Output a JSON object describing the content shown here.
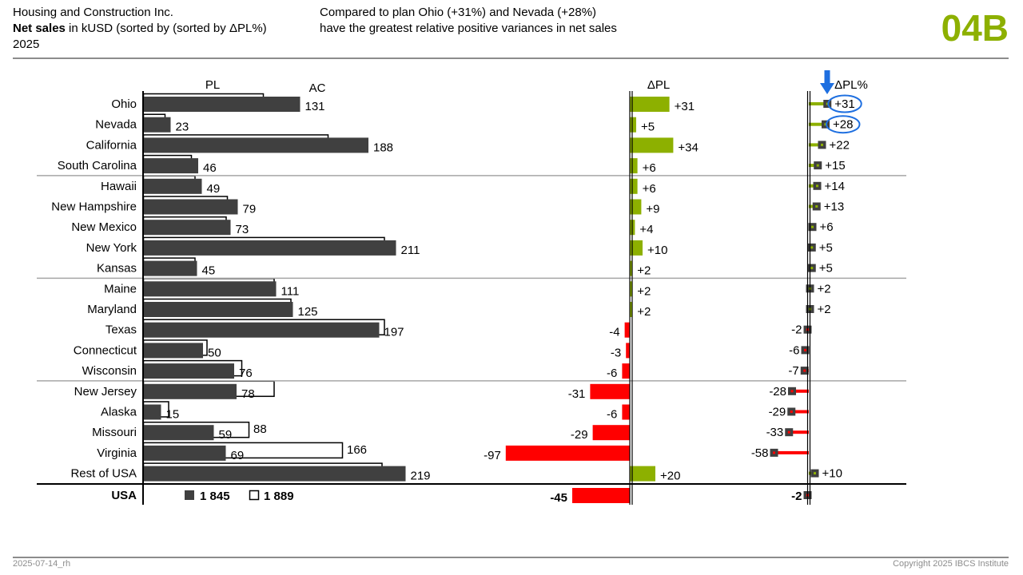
{
  "header": {
    "company": "Housing and Construction Inc.",
    "measure_bold": "Net sales",
    "measure_rest": " in kUSD (sorted by (sorted by ΔPL%)",
    "year": "2025",
    "message_line1": "Compared to plan Ohio (+31%) and Nevada (+28%)",
    "message_line2": "have the greatest relative positive variances in net sales",
    "page_code": "04B"
  },
  "footer": {
    "date_note": "2025-07-14_rh",
    "copyright": "Copyright 2025 IBCS Institute"
  },
  "colors": {
    "actual": "#404040",
    "plan_outline": "#000000",
    "positive": "#8db000",
    "negative": "#ff0000",
    "highlight": "#1e6fe0",
    "brand": "#8db000"
  },
  "icons": {
    "arrow": "down-arrow-icon"
  },
  "chart_data": {
    "type": "bar",
    "column_headers": {
      "pl": "PL",
      "ac": "AC",
      "dpl": "ΔPL",
      "dplp": "ΔPL%"
    },
    "categories": [
      "Ohio",
      "Nevada",
      "California",
      "South Carolina",
      "Hawaii",
      "New Hampshire",
      "New Mexico",
      "New York",
      "Kansas",
      "Maine",
      "Maryland",
      "Texas",
      "Connecticut",
      "Wisconsin",
      "New Jersey",
      "Alaska",
      "Missouri",
      "Virginia",
      "Rest of USA"
    ],
    "ac": [
      131,
      23,
      188,
      46,
      49,
      79,
      73,
      211,
      45,
      111,
      125,
      197,
      50,
      76,
      78,
      15,
      59,
      69,
      219
    ],
    "pl": [
      100,
      18,
      154,
      40,
      43,
      70,
      69,
      201,
      43,
      109,
      123,
      201,
      53,
      82,
      109,
      21,
      88,
      166,
      199
    ],
    "pl_labels": [
      null,
      null,
      null,
      null,
      null,
      null,
      null,
      null,
      null,
      null,
      null,
      null,
      null,
      null,
      null,
      null,
      "88",
      "166",
      null
    ],
    "delta_pl": [
      31,
      5,
      34,
      6,
      6,
      9,
      4,
      10,
      2,
      2,
      2,
      -4,
      -3,
      -6,
      -31,
      -6,
      -29,
      -97,
      20
    ],
    "delta_pl_labels": [
      "+31",
      "+5",
      "+34",
      "+6",
      "+6",
      "+9",
      "+4",
      "+10",
      "+2",
      "+2",
      "+2",
      "-4",
      "-3",
      "-6",
      "-31",
      "-6",
      "-29",
      "-97",
      "+20"
    ],
    "delta_pl_pct": [
      31,
      28,
      22,
      15,
      14,
      13,
      6,
      5,
      5,
      2,
      2,
      -2,
      -6,
      -7,
      -28,
      -29,
      -33,
      -58,
      10
    ],
    "delta_pl_pct_labels": [
      "+31",
      "+28",
      "+22",
      "+15",
      "+14",
      "+13",
      "+6",
      "+5",
      "+5",
      "+2",
      "+2",
      "-2",
      "-6",
      "-7",
      "-28",
      "-29",
      "-33",
      "-58",
      "+10"
    ],
    "highlighted": [
      "Ohio",
      "Nevada"
    ],
    "group_separators_after": [
      "South Carolina",
      "Kansas",
      "Wisconsin"
    ],
    "total": {
      "label": "USA",
      "ac_label": "1 845",
      "pl_label": "1 889",
      "delta_pl": -45,
      "delta_pl_label": "-45",
      "delta_pl_pct": -2,
      "delta_pl_pct_label": "-2"
    }
  }
}
